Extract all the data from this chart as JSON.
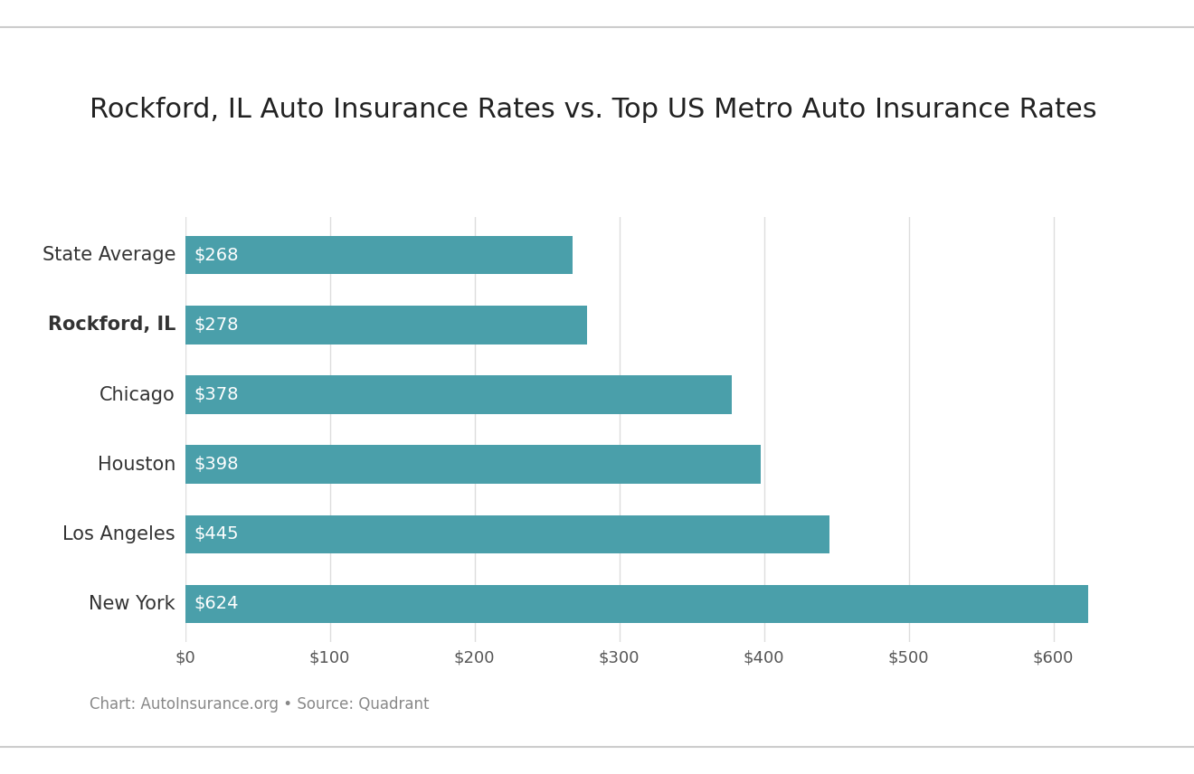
{
  "title": "Rockford, IL Auto Insurance Rates vs. Top US Metro Auto Insurance Rates",
  "categories": [
    "State Average",
    "Rockford, IL",
    "Chicago",
    "Houston",
    "Los Angeles",
    "New York"
  ],
  "values": [
    268,
    278,
    378,
    398,
    445,
    624
  ],
  "bold_category": "Rockford, IL",
  "bar_color": "#4a9faa",
  "label_color": "#ffffff",
  "background_color": "#ffffff",
  "title_fontsize": 22,
  "label_fontsize": 14,
  "ytick_fontsize": 15,
  "tick_fontsize": 13,
  "caption": "Chart: AutoInsurance.org • Source: Quadrant",
  "caption_fontsize": 12,
  "xlim": [
    0,
    660
  ],
  "xticks": [
    0,
    100,
    200,
    300,
    400,
    500,
    600
  ],
  "xtick_labels": [
    "$0",
    "$100",
    "$200",
    "$300",
    "$400",
    "$500",
    "$600"
  ],
  "bar_height": 0.55,
  "grid_color": "#dddddd"
}
